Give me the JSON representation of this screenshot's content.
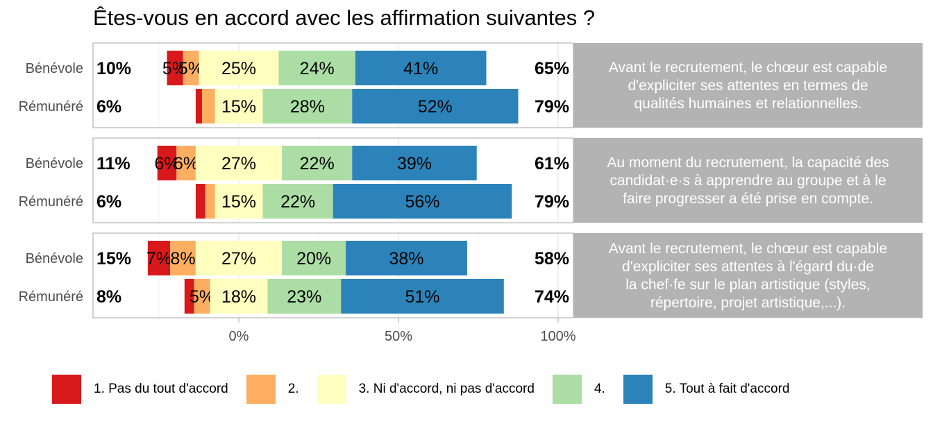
{
  "chart_data": {
    "type": "bar",
    "orientation": "horizontal",
    "stacking": "diverging",
    "title": "Êtes-vous en accord avec les affirmation suivantes ?",
    "x_ticks": [
      "0%",
      "50%",
      "100%"
    ],
    "x_tick_values": [
      0,
      50,
      100
    ],
    "xlim": [
      -45,
      105
    ],
    "grid": true,
    "legend_position": "bottom",
    "legend": [
      {
        "label": "1. Pas du tout d'accord",
        "color": "#d7191c"
      },
      {
        "label": "2.",
        "color": "#fdae61"
      },
      {
        "label": "3. Ni d'accord, ni pas d'accord",
        "color": "#ffffbf"
      },
      {
        "label": "4.",
        "color": "#abdda4"
      },
      {
        "label": "5. Tout à fait d'accord",
        "color": "#2b83ba"
      }
    ],
    "panels": [
      {
        "statement": "Avant le recrutement, le chœur est capable d'expliciter ses attentes en termes de qualités humaines et relationnelles.",
        "rows": [
          {
            "group": "Bénévole",
            "values": [
              5,
              5,
              25,
              24,
              41
            ],
            "labels": [
              "5%",
              "5%",
              "25%",
              "24%",
              "41%"
            ],
            "low": "10%",
            "high": "65%"
          },
          {
            "group": "Rémunéré",
            "values": [
              2,
              4,
              15,
              28,
              52
            ],
            "labels": [
              "",
              "",
              "15%",
              "28%",
              "52%"
            ],
            "low": "6%",
            "high": "79%"
          }
        ]
      },
      {
        "statement": "Au moment du recrutement, la capacité des candidat·e·s à apprendre au groupe et à le faire progresser a été prise en compte.",
        "rows": [
          {
            "group": "Bénévole",
            "values": [
              6,
              6,
              27,
              22,
              39
            ],
            "labels": [
              "6%",
              "6%",
              "27%",
              "22%",
              "39%"
            ],
            "low": "11%",
            "high": "61%"
          },
          {
            "group": "Rémunéré",
            "values": [
              3,
              3,
              15,
              22,
              56
            ],
            "labels": [
              "",
              "",
              "15%",
              "22%",
              "56%"
            ],
            "low": "6%",
            "high": "79%"
          }
        ]
      },
      {
        "statement": "Avant le recrutement, le chœur est capable d'expliciter ses attentes à l'égard du·de la chef·fe sur le plan artistique (styles, répertoire, projet artistique,...).",
        "rows": [
          {
            "group": "Bénévole",
            "values": [
              7,
              8,
              27,
              20,
              38
            ],
            "labels": [
              "7%",
              "8%",
              "27%",
              "20%",
              "38%"
            ],
            "low": "15%",
            "high": "58%"
          },
          {
            "group": "Rémunéré",
            "values": [
              3,
              5,
              18,
              23,
              51
            ],
            "labels": [
              "",
              "5%",
              "18%",
              "23%",
              "51%"
            ],
            "low": "8%",
            "high": "74%"
          }
        ]
      }
    ]
  }
}
